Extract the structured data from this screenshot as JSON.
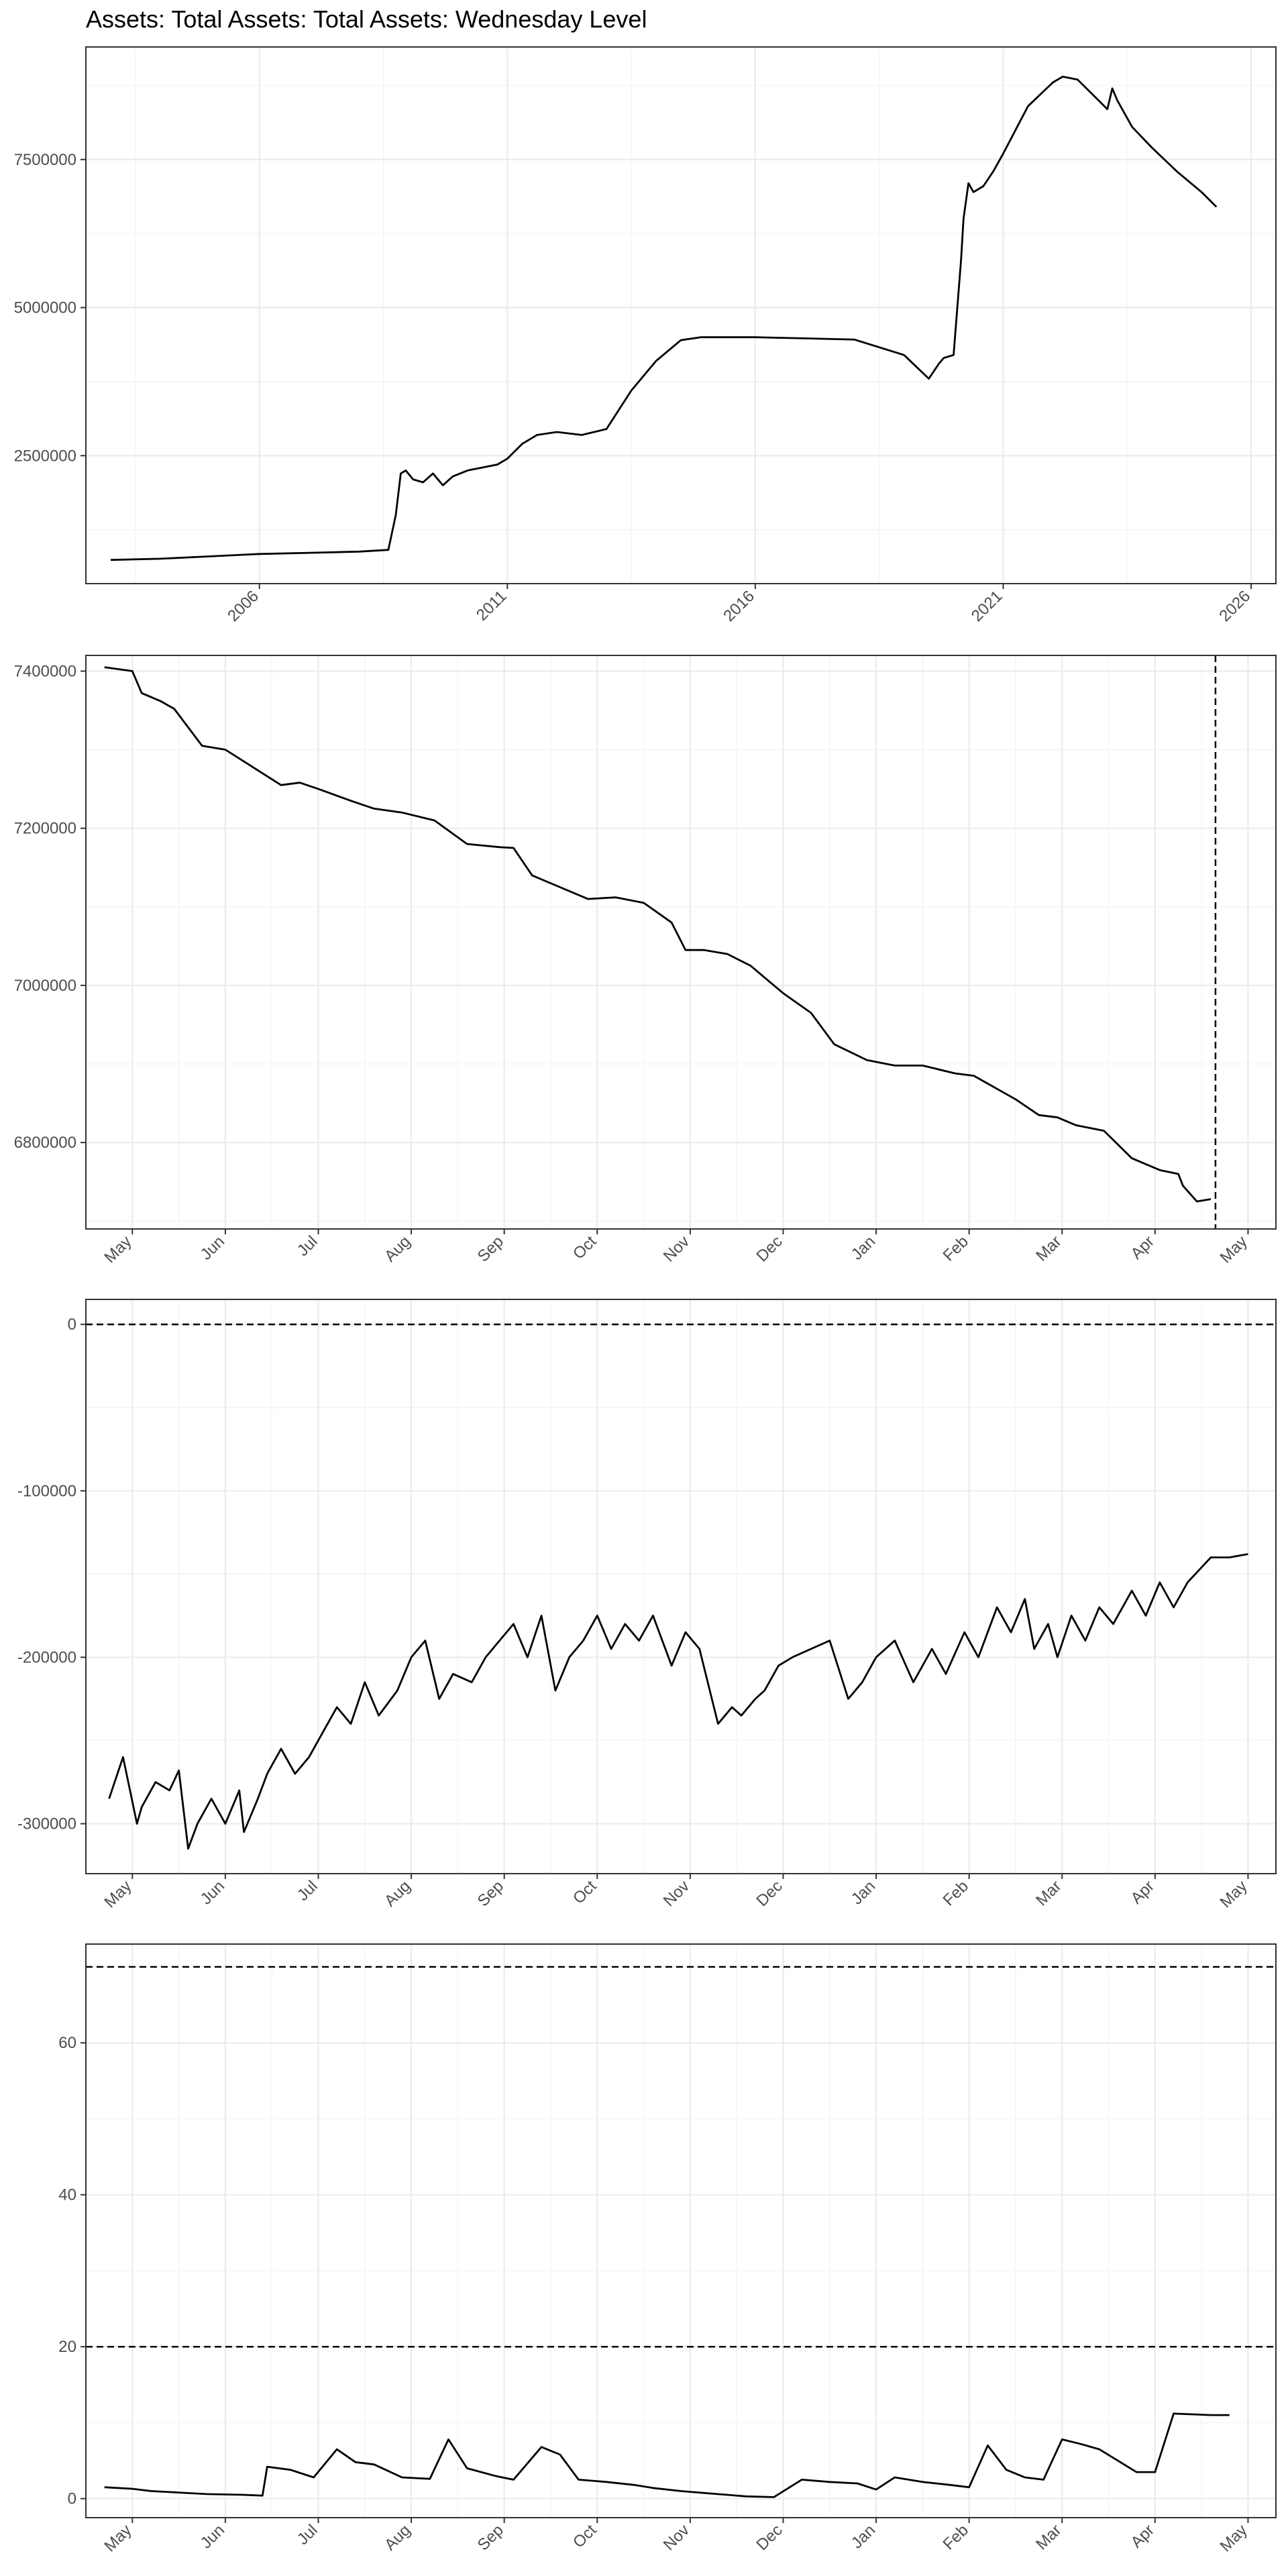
{
  "title": "Assets: Total Assets: Total Assets: Wednesday Level",
  "chart_data": [
    {
      "type": "line",
      "title": "Assets: Total Assets: Total Assets: Wednesday Level",
      "x_ticks": [
        "2006",
        "2011",
        "2016",
        "2021",
        "2026"
      ],
      "y_ticks": [
        "2500000",
        "5000000",
        "7500000"
      ],
      "xlim": [
        2002.5,
        2026.5
      ],
      "ylim": [
        340000,
        9400000
      ],
      "grid": true,
      "series": [
        {
          "x": [
            2003.0,
            2004.0,
            2005.0,
            2006.0,
            2007.0,
            2008.0,
            2008.6,
            2008.75,
            2008.85,
            2008.95,
            2009.1,
            2009.3,
            2009.5,
            2009.7,
            2009.9,
            2010.2,
            2010.5,
            2010.8,
            2011.0,
            2011.3,
            2011.6,
            2012.0,
            2012.5,
            2013.0,
            2013.5,
            2014.0,
            2014.5,
            2014.9,
            2015.5,
            2016.0,
            2017.0,
            2018.0,
            2019.0,
            2019.5,
            2019.7,
            2019.8,
            2020.0,
            2020.15,
            2020.2,
            2020.3,
            2020.4,
            2020.6,
            2020.8,
            2021.0,
            2021.5,
            2022.0,
            2022.2,
            2022.5,
            2022.8,
            2023.1,
            2023.2,
            2023.3,
            2023.6,
            2024.0,
            2024.5,
            2025.0,
            2025.3
          ],
          "values": [
            740000,
            760000,
            800000,
            840000,
            860000,
            880000,
            910000,
            1500000,
            2200000,
            2250000,
            2100000,
            2050000,
            2200000,
            2000000,
            2150000,
            2250000,
            2300000,
            2350000,
            2450000,
            2700000,
            2850000,
            2900000,
            2850000,
            2950000,
            3600000,
            4100000,
            4450000,
            4500000,
            4500000,
            4500000,
            4480000,
            4460000,
            4200000,
            3800000,
            4050000,
            4150000,
            4200000,
            5800000,
            6500000,
            7100000,
            6950000,
            7050000,
            7300000,
            7600000,
            8400000,
            8800000,
            8900000,
            8850000,
            8600000,
            8350000,
            8700000,
            8500000,
            8050000,
            7700000,
            7300000,
            6950000,
            6700000
          ]
        }
      ]
    },
    {
      "type": "line",
      "x_ticks": [
        "May",
        "Jun",
        "Jul",
        "Aug",
        "Sep",
        "Oct",
        "Nov",
        "Dec",
        "Jan",
        "Feb",
        "Mar",
        "Apr",
        "May"
      ],
      "y_ticks": [
        "6800000",
        "7000000",
        "7200000",
        "7400000"
      ],
      "xlim": [
        -0.5,
        12.3
      ],
      "ylim": [
        6690000,
        7420000
      ],
      "grid": true,
      "vline_x": 11.65,
      "series": [
        {
          "x": [
            -0.3,
            0.0,
            0.1,
            0.3,
            0.45,
            0.75,
            1.0,
            1.2,
            1.6,
            1.8,
            2.0,
            2.35,
            2.6,
            2.9,
            3.25,
            3.6,
            3.95,
            4.1,
            4.3,
            4.6,
            4.9,
            5.2,
            5.5,
            5.8,
            5.95,
            6.15,
            6.4,
            6.65,
            6.8,
            7.0,
            7.3,
            7.55,
            7.9,
            8.2,
            8.5,
            8.85,
            9.05,
            9.5,
            9.75,
            9.95,
            10.15,
            10.45,
            10.75,
            11.05,
            11.25,
            11.3,
            11.45,
            11.6
          ],
          "values": [
            7405000,
            7400000,
            7372000,
            7362000,
            7352000,
            7305000,
            7300000,
            7285000,
            7255000,
            7258000,
            7250000,
            7235000,
            7225000,
            7220000,
            7210000,
            7180000,
            7176000,
            7175000,
            7140000,
            7125000,
            7110000,
            7112000,
            7105000,
            7080000,
            7045000,
            7045000,
            7040000,
            7025000,
            7010000,
            6990000,
            6965000,
            6925000,
            6905000,
            6898000,
            6898000,
            6888000,
            6885000,
            6855000,
            6835000,
            6832000,
            6822000,
            6815000,
            6780000,
            6765000,
            6760000,
            6745000,
            6725000,
            6728000
          ]
        }
      ]
    },
    {
      "type": "line",
      "x_ticks": [
        "May",
        "Jun",
        "Jul",
        "Aug",
        "Sep",
        "Oct",
        "Nov",
        "Dec",
        "Jan",
        "Feb",
        "Mar",
        "Apr",
        "May"
      ],
      "y_ticks": [
        "-300000",
        "-200000",
        "-100000",
        "0"
      ],
      "xlim": [
        -0.5,
        12.3
      ],
      "ylim": [
        -330000,
        15000
      ],
      "grid": true,
      "hline_y": 0,
      "series": [
        {
          "x": [
            -0.25,
            -0.1,
            0.05,
            0.1,
            0.25,
            0.4,
            0.5,
            0.6,
            0.7,
            0.75,
            0.85,
            1.0,
            1.15,
            1.2,
            1.35,
            1.45,
            1.6,
            1.75,
            1.9,
            2.1,
            2.2,
            2.35,
            2.5,
            2.65,
            2.85,
            3.0,
            3.15,
            3.3,
            3.45,
            3.65,
            3.8,
            3.95,
            4.1,
            4.25,
            4.4,
            4.55,
            4.7,
            4.85,
            5.0,
            5.15,
            5.3,
            5.45,
            5.6,
            5.8,
            5.95,
            6.1,
            6.3,
            6.45,
            6.55,
            6.7,
            6.8,
            6.95,
            7.1,
            7.3,
            7.5,
            7.7,
            7.85,
            8.0,
            8.2,
            8.4,
            8.6,
            8.75,
            8.95,
            9.1,
            9.3,
            9.45,
            9.6,
            9.7,
            9.85,
            9.95,
            10.1,
            10.25,
            10.4,
            10.55,
            10.75,
            10.9,
            11.05,
            11.2,
            11.35,
            11.6,
            11.8,
            12.0
          ],
          "values": [
            -285000,
            -260000,
            -300000,
            -290000,
            -275000,
            -280000,
            -268000,
            -315000,
            -300000,
            -295000,
            -285000,
            -300000,
            -280000,
            -305000,
            -285000,
            -270000,
            -255000,
            -270000,
            -260000,
            -240000,
            -230000,
            -240000,
            -215000,
            -235000,
            -220000,
            -200000,
            -190000,
            -225000,
            -210000,
            -215000,
            -200000,
            -190000,
            -180000,
            -200000,
            -175000,
            -220000,
            -200000,
            -190000,
            -175000,
            -195000,
            -180000,
            -190000,
            -175000,
            -205000,
            -185000,
            -195000,
            -240000,
            -230000,
            -235000,
            -225000,
            -220000,
            -205000,
            -200000,
            -195000,
            -190000,
            -225000,
            -215000,
            -200000,
            -190000,
            -215000,
            -195000,
            -210000,
            -185000,
            -200000,
            -170000,
            -185000,
            -165000,
            -195000,
            -180000,
            -200000,
            -175000,
            -190000,
            -170000,
            -180000,
            -160000,
            -175000,
            -155000,
            -170000,
            -155000,
            -140000,
            -140000,
            -138000
          ]
        }
      ]
    },
    {
      "type": "line",
      "x_ticks": [
        "May",
        "Jun",
        "Jul",
        "Aug",
        "Sep",
        "Oct",
        "Nov",
        "Dec",
        "Jan",
        "Feb",
        "Mar",
        "Apr",
        "May"
      ],
      "y_ticks": [
        "0",
        "20",
        "40",
        "60"
      ],
      "xlim": [
        -0.5,
        12.3
      ],
      "ylim": [
        -2.5,
        73
      ],
      "grid": true,
      "hline_ys": [
        20,
        70
      ],
      "series": [
        {
          "x": [
            -0.3,
            0.0,
            0.2,
            0.5,
            0.8,
            1.2,
            1.4,
            1.45,
            1.7,
            1.95,
            2.2,
            2.4,
            2.6,
            2.9,
            3.2,
            3.4,
            3.6,
            3.9,
            4.1,
            4.4,
            4.6,
            4.8,
            5.1,
            5.4,
            5.6,
            5.9,
            6.2,
            6.4,
            6.6,
            6.9,
            7.2,
            7.5,
            7.8,
            8.0,
            8.2,
            8.5,
            8.8,
            9.0,
            9.2,
            9.4,
            9.6,
            9.8,
            10.0,
            10.2,
            10.4,
            10.6,
            10.8,
            11.0,
            11.2,
            11.4,
            11.6,
            11.8
          ],
          "values": [
            1.5,
            1.3,
            1.0,
            0.8,
            0.6,
            0.5,
            0.4,
            4.2,
            3.8,
            2.8,
            6.5,
            4.8,
            4.5,
            2.8,
            2.6,
            7.8,
            4.0,
            3.0,
            2.5,
            6.8,
            5.8,
            2.5,
            2.2,
            1.8,
            1.4,
            1.0,
            0.7,
            0.5,
            0.3,
            0.2,
            2.5,
            2.2,
            2.0,
            1.2,
            2.8,
            2.2,
            1.8,
            1.5,
            7.0,
            3.8,
            2.8,
            2.5,
            7.8,
            7.2,
            6.5,
            5.0,
            3.5,
            3.5,
            11.2,
            11.1,
            11.0,
            11.0
          ]
        }
      ]
    }
  ]
}
